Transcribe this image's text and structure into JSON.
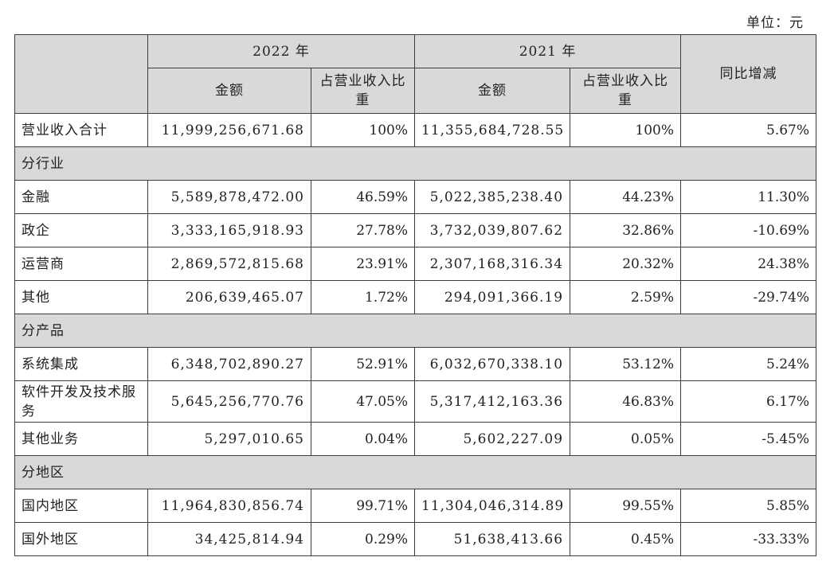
{
  "unit_label": "单位：元",
  "header": {
    "year_2022": "2022 年",
    "year_2021": "2021 年",
    "amount_2022": "金额",
    "ratio_2022": "占营业收入比重",
    "amount_2021": "金额",
    "ratio_2021": "占营业收入比重",
    "yoy": "同比增减"
  },
  "total": {
    "label": "营业收入合计",
    "amount_2022": "11,999,256,671.68",
    "ratio_2022": "100%",
    "amount_2021": "11,355,684,728.55",
    "ratio_2021": "100%",
    "yoy": "5.67%"
  },
  "sections": [
    {
      "title": "分行业",
      "rows": [
        {
          "label": "金融",
          "amount_2022": "5,589,878,472.00",
          "ratio_2022": "46.59%",
          "amount_2021": "5,022,385,238.40",
          "ratio_2021": "44.23%",
          "yoy": "11.30%"
        },
        {
          "label": "政企",
          "amount_2022": "3,333,165,918.93",
          "ratio_2022": "27.78%",
          "amount_2021": "3,732,039,807.62",
          "ratio_2021": "32.86%",
          "yoy": "-10.69%"
        },
        {
          "label": "运营商",
          "amount_2022": "2,869,572,815.68",
          "ratio_2022": "23.91%",
          "amount_2021": "2,307,168,316.34",
          "ratio_2021": "20.32%",
          "yoy": "24.38%"
        },
        {
          "label": "其他",
          "amount_2022": "206,639,465.07",
          "ratio_2022": "1.72%",
          "amount_2021": "294,091,366.19",
          "ratio_2021": "2.59%",
          "yoy": "-29.74%"
        }
      ]
    },
    {
      "title": "分产品",
      "rows": [
        {
          "label": "系统集成",
          "amount_2022": "6,348,702,890.27",
          "ratio_2022": "52.91%",
          "amount_2021": "6,032,670,338.10",
          "ratio_2021": "53.12%",
          "yoy": "5.24%"
        },
        {
          "label": "软件开发及技术服务",
          "amount_2022": "5,645,256,770.76",
          "ratio_2022": "47.05%",
          "amount_2021": "5,317,412,163.36",
          "ratio_2021": "46.83%",
          "yoy": "6.17%"
        },
        {
          "label": "其他业务",
          "amount_2022": "5,297,010.65",
          "ratio_2022": "0.04%",
          "amount_2021": "5,602,227.09",
          "ratio_2021": "0.05%",
          "yoy": "-5.45%"
        }
      ]
    },
    {
      "title": "分地区",
      "rows": [
        {
          "label": "国内地区",
          "amount_2022": "11,964,830,856.74",
          "ratio_2022": "99.71%",
          "amount_2021": "11,304,046,314.89",
          "ratio_2021": "99.55%",
          "yoy": "5.85%"
        },
        {
          "label": "国外地区",
          "amount_2022": "34,425,814.94",
          "ratio_2022": "0.29%",
          "amount_2021": "51,638,413.66",
          "ratio_2021": "0.45%",
          "yoy": "-33.33%"
        }
      ]
    }
  ]
}
